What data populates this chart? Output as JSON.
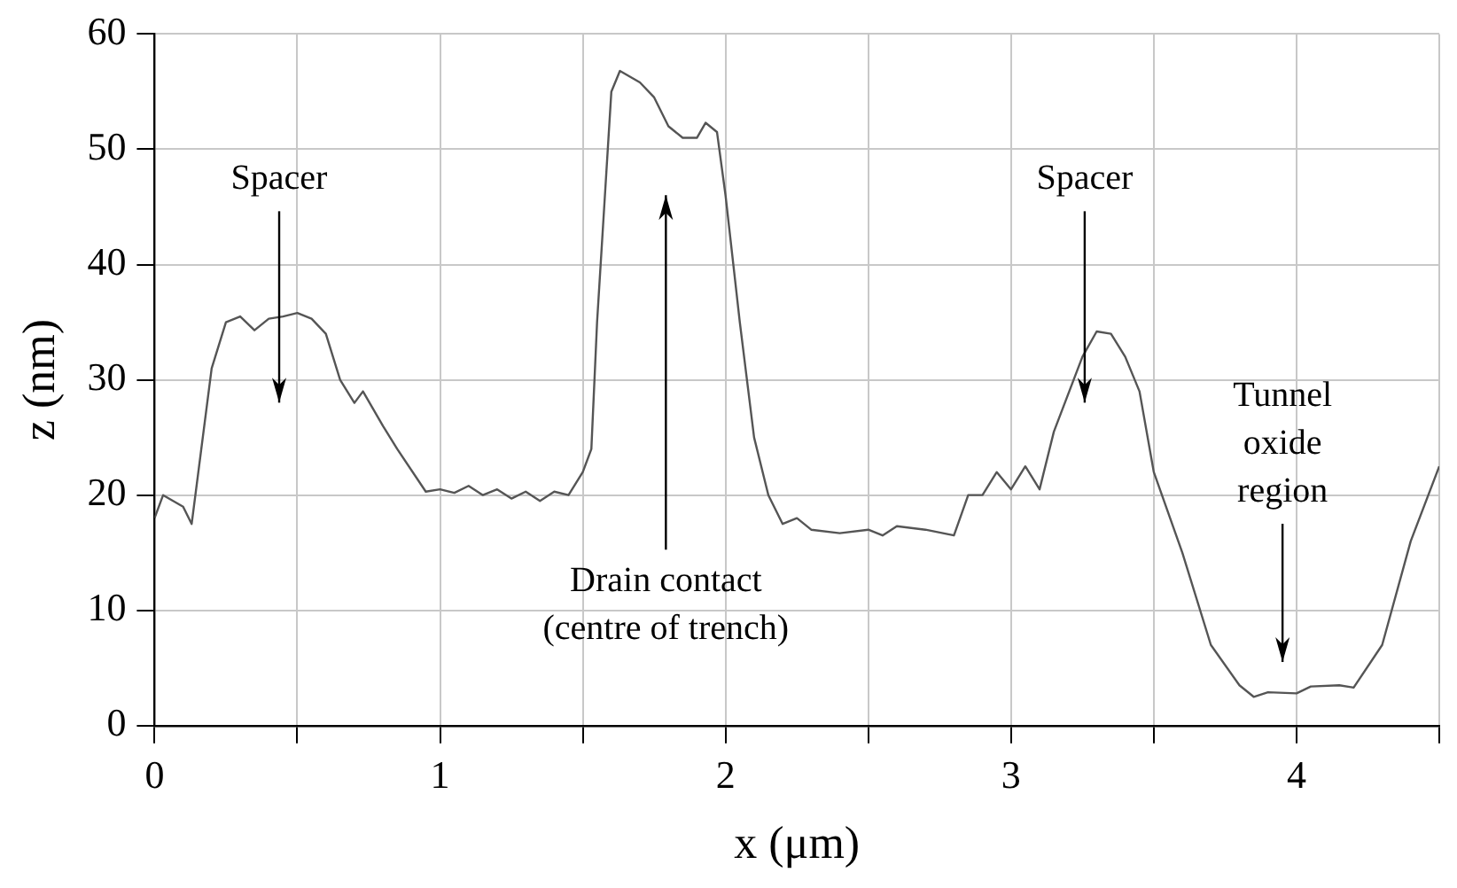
{
  "chart_data": {
    "type": "line",
    "xlabel": "x (μm)",
    "ylabel": "z (nm)",
    "xlim": [
      0,
      4.5
    ],
    "xticks": [
      0,
      {
        "value": 0.5,
        "label": null
      },
      1,
      {
        "value": 1.5,
        "label": null
      },
      2,
      {
        "value": 2.5,
        "label": null
      },
      3,
      {
        "value": 3.5,
        "label": null
      },
      4,
      {
        "value": 4.5,
        "label": null
      }
    ],
    "ylim": [
      0,
      60
    ],
    "yticks": [
      0,
      10,
      20,
      30,
      40,
      50,
      60
    ],
    "grid": true,
    "marker": "none",
    "line_style": "solid",
    "series": [
      {
        "color": "#555555",
        "x": [
          0,
          0.03,
          0.1,
          0.13,
          0.2,
          0.25,
          0.3,
          0.35,
          0.4,
          0.45,
          0.5,
          0.55,
          0.6,
          0.65,
          0.7,
          0.73,
          0.8,
          0.85,
          0.95,
          1.0,
          1.05,
          1.1,
          1.15,
          1.2,
          1.25,
          1.3,
          1.35,
          1.4,
          1.45,
          1.5,
          1.53,
          1.55,
          1.6,
          1.63,
          1.7,
          1.75,
          1.8,
          1.85,
          1.9,
          1.93,
          1.97,
          2.0,
          2.05,
          2.1,
          2.15,
          2.2,
          2.25,
          2.3,
          2.4,
          2.5,
          2.55,
          2.6,
          2.7,
          2.8,
          2.85,
          2.9,
          2.95,
          3.0,
          3.05,
          3.1,
          3.15,
          3.25,
          3.3,
          3.35,
          3.4,
          3.45,
          3.5,
          3.6,
          3.7,
          3.8,
          3.85,
          3.9,
          4.0,
          4.05,
          4.15,
          4.2,
          4.3,
          4.4,
          4.5
        ],
        "values": [
          18,
          20,
          19,
          17.5,
          31,
          35,
          35.5,
          34.3,
          35.3,
          35.5,
          35.8,
          35.3,
          34,
          30,
          28,
          29,
          26,
          24,
          20.3,
          20.5,
          20.2,
          20.8,
          20,
          20.5,
          19.7,
          20.3,
          19.5,
          20.3,
          20,
          22,
          24,
          35,
          55,
          56.8,
          55.8,
          54.5,
          52,
          51,
          51,
          52.3,
          51.5,
          46,
          35,
          25,
          20,
          17.5,
          18,
          17,
          16.7,
          17,
          16.5,
          17.3,
          17,
          16.5,
          20,
          20,
          22,
          20.5,
          22.5,
          20.5,
          25.5,
          32,
          34.2,
          34,
          32,
          29,
          22,
          15,
          7,
          3.5,
          2.5,
          2.9,
          2.8,
          3.4,
          3.5,
          3.3,
          7,
          16,
          22.5
        ]
      }
    ],
    "annotations": [
      "Spacer",
      "Drain contact\n(centre of trench)",
      "Spacer",
      "Tunnel\noxide\nregion"
    ]
  }
}
